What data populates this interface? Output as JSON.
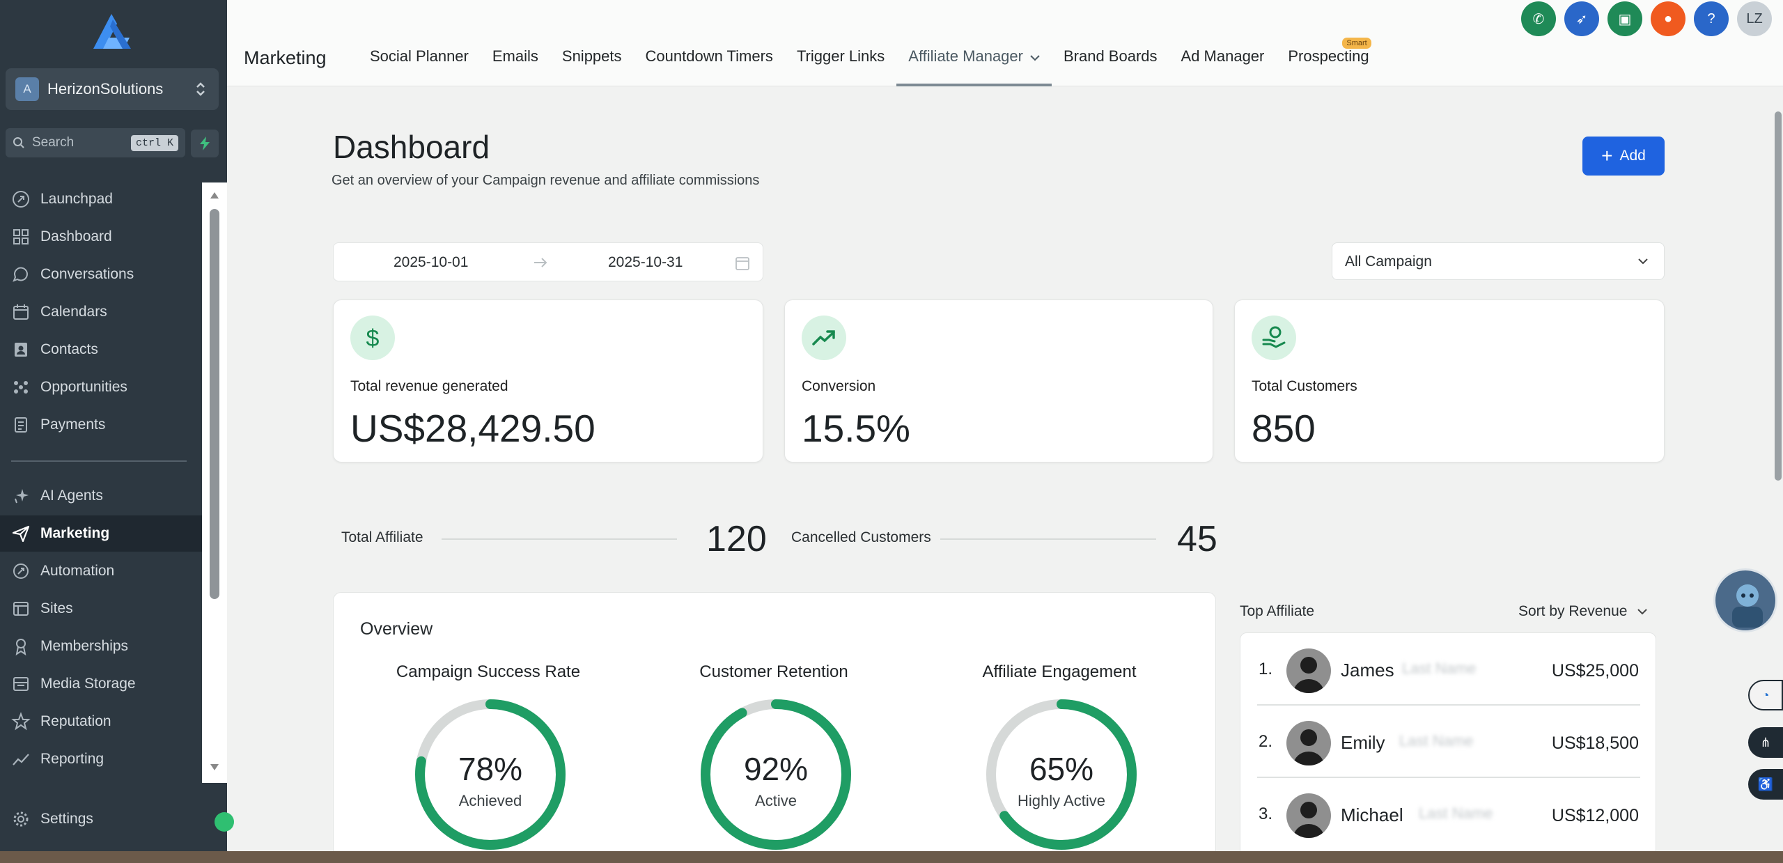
{
  "sidebar": {
    "account": {
      "initial": "A",
      "name": "HerizonSolutions"
    },
    "search": {
      "placeholder": "Search",
      "shortcut": "ctrl K"
    },
    "nav": [
      {
        "label": "Launchpad",
        "icon": "rocket-icon"
      },
      {
        "label": "Dashboard",
        "icon": "grid-icon"
      },
      {
        "label": "Conversations",
        "icon": "chat-icon"
      },
      {
        "label": "Calendars",
        "icon": "calendar-icon"
      },
      {
        "label": "Contacts",
        "icon": "contacts-icon"
      },
      {
        "label": "Opportunities",
        "icon": "opportunities-icon"
      },
      {
        "label": "Payments",
        "icon": "payments-icon"
      },
      {
        "label": "AI Agents",
        "icon": "sparkle-icon"
      },
      {
        "label": "Marketing",
        "icon": "send-icon",
        "active": true
      },
      {
        "label": "Automation",
        "icon": "automation-icon"
      },
      {
        "label": "Sites",
        "icon": "sites-icon"
      },
      {
        "label": "Memberships",
        "icon": "membership-icon"
      },
      {
        "label": "Media Storage",
        "icon": "media-icon"
      },
      {
        "label": "Reputation",
        "icon": "star-icon"
      },
      {
        "label": "Reporting",
        "icon": "chart-icon"
      },
      {
        "label": "Settings",
        "icon": "gear-icon"
      }
    ]
  },
  "topbar": {
    "title": "Marketing",
    "tabs": [
      {
        "label": "Social Planner"
      },
      {
        "label": "Emails"
      },
      {
        "label": "Snippets"
      },
      {
        "label": "Countdown Timers"
      },
      {
        "label": "Trigger Links"
      },
      {
        "label": "Affiliate Manager",
        "active": true
      },
      {
        "label": "Brand Boards"
      },
      {
        "label": "Ad Manager"
      },
      {
        "label": "Prospecting",
        "badge": "Smart"
      }
    ],
    "user_initials": "LZ",
    "icon_colors": [
      "#1f8a57",
      "#2a67c9",
      "#1f8a57",
      "#f05a1f",
      "#2a67c9",
      "#c9d0d6"
    ]
  },
  "dashboard": {
    "title": "Dashboard",
    "subtitle": "Get an overview of your Campaign revenue and affiliate commissions",
    "add_label": "Add",
    "date_start": "2025-10-01",
    "date_end": "2025-10-31",
    "campaign_filter": "All Campaign",
    "stats": [
      {
        "label": "Total revenue generated",
        "value": "US$28,429.50",
        "icon": "dollar-icon"
      },
      {
        "label": "Conversion",
        "value": "15.5%",
        "icon": "trend-up-icon"
      },
      {
        "label": "Total Customers",
        "value": "850",
        "icon": "customers-icon"
      }
    ],
    "total_affiliate": {
      "label": "Total Affiliate",
      "value": "120"
    },
    "cancelled_customers": {
      "label": "Cancelled Customers",
      "value": "45"
    }
  },
  "overview": {
    "title": "Overview",
    "gauges": [
      {
        "title": "Campaign Success Rate",
        "percent": 78,
        "display": "78%",
        "sub": "Achieved"
      },
      {
        "title": "Customer Retention",
        "percent": 92,
        "display": "92%",
        "sub": "Active"
      },
      {
        "title": "Affiliate Engagement",
        "percent": 65,
        "display": "65%",
        "sub": "Highly Active"
      }
    ],
    "colors": {
      "ring": "#1f9d64",
      "track": "#d6d9d8"
    }
  },
  "top_affiliate": {
    "title": "Top Affiliate",
    "sort_label": "Sort by Revenue",
    "rows": [
      {
        "rank": "1.",
        "first": "James",
        "last": "Last Name",
        "amount": "US$25,000"
      },
      {
        "rank": "2.",
        "first": "Emily",
        "last": "Last Name",
        "amount": "US$18,500"
      },
      {
        "rank": "3.",
        "first": "Michael",
        "last": "Last Name",
        "amount": "US$12,000"
      }
    ]
  }
}
